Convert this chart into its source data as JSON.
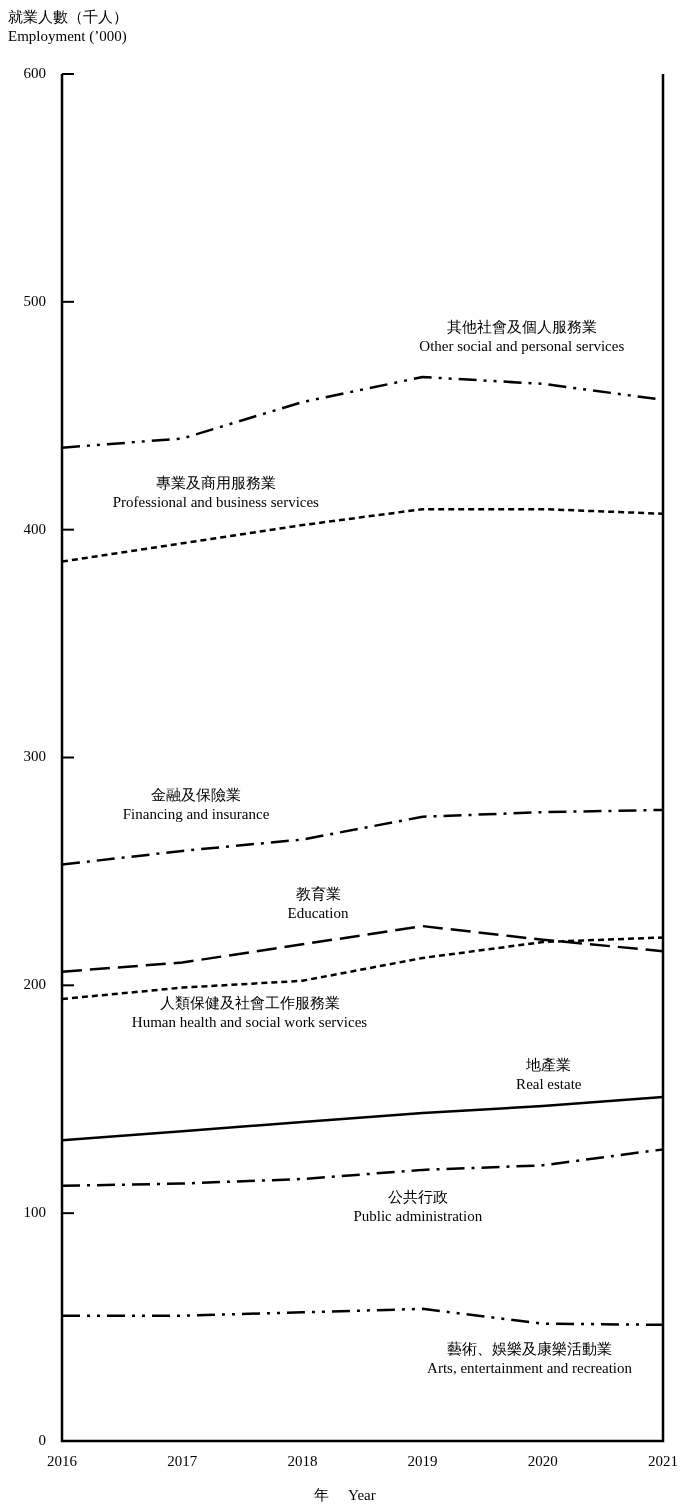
{
  "chart_data": {
    "type": "line",
    "xlabel": "年　 Year",
    "ylabel": "就業人數（千人）\nEmployment (’000)",
    "x": [
      2016,
      2017,
      2018,
      2019,
      2020,
      2021
    ],
    "xlim": [
      2016,
      2021
    ],
    "xticks": [
      2016,
      2017,
      2018,
      2019,
      2020,
      2021
    ],
    "ylim": [
      0,
      600
    ],
    "yticks": [
      0,
      100,
      200,
      300,
      400,
      500,
      600
    ],
    "grid": false,
    "legend": false,
    "marker": "none",
    "series": [
      {
        "name": "其他社會及個人服務業\nOther social and personal services",
        "color": "#000000",
        "line_style": "dashdotdot",
        "values": [
          436,
          440,
          456,
          467,
          464,
          457
        ]
      },
      {
        "name": "專業及商用服務業\nProfessional and business services",
        "color": "#000000",
        "line_style": "dotted",
        "values": [
          386,
          394,
          402,
          409,
          409,
          407
        ]
      },
      {
        "name": "金融及保險業\nFinancing and insurance",
        "color": "#000000",
        "line_style": "dashdot",
        "values": [
          253,
          259,
          264,
          274,
          276,
          277
        ]
      },
      {
        "name": "教育業\nEducation",
        "color": "#000000",
        "line_style": "dashed",
        "values": [
          206,
          210,
          218,
          226,
          220,
          215
        ]
      },
      {
        "name": "人類保健及社會工作服務業\nHuman health and social work services",
        "color": "#000000",
        "line_style": "dotted",
        "values": [
          194,
          199,
          202,
          212,
          219,
          221
        ]
      },
      {
        "name": "地產業\nReal estate",
        "color": "#000000",
        "line_style": "solid",
        "values": [
          132,
          136,
          140,
          144,
          147,
          151
        ]
      },
      {
        "name": "公共行政\nPublic administration",
        "color": "#000000",
        "line_style": "dashdot",
        "values": [
          112,
          113,
          115,
          119,
          121,
          128
        ]
      },
      {
        "name": "藝術、娛樂及康樂活動業\nArts, entertainment and recreation",
        "color": "#000000",
        "line_style": "dashdotdot",
        "values": [
          55,
          55,
          56.5,
          58,
          51.5,
          51
        ]
      }
    ]
  }
}
